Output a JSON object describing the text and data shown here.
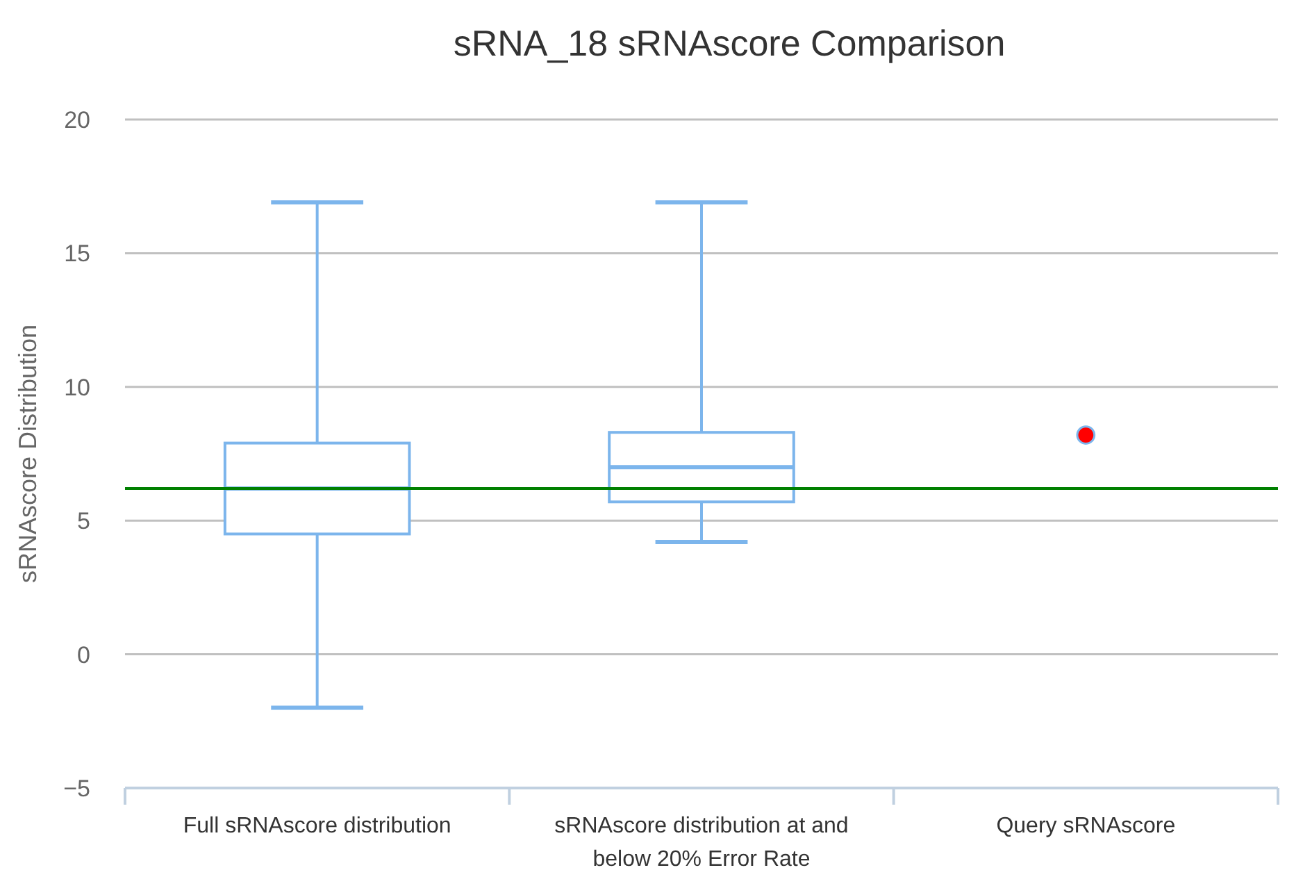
{
  "chart_data": {
    "type": "box",
    "title": "sRNA_18 sRNAscore Comparison",
    "ylabel": "sRNAscore Distribution",
    "categories": [
      "Full sRNAscore distribution",
      "sRNAscore distribution at and below 20% Error Rate",
      "Query sRNAscore"
    ],
    "series": [
      {
        "color": "#7cb5ec",
        "boxes": [
          {
            "low": -2.0,
            "q1": 4.5,
            "median": 6.2,
            "q3": 7.9,
            "high": 16.9
          },
          {
            "low": 4.2,
            "q1": 5.7,
            "median": 7.0,
            "q3": 8.3,
            "high": 16.9
          },
          null
        ]
      },
      {
        "type": "scatter",
        "color": "#ff0000",
        "x": [
          "Query sRNAscore"
        ],
        "values": [
          8.2
        ]
      }
    ],
    "ylim": [
      -5,
      20
    ],
    "yticks": [
      {
        "value": -5,
        "label": "−5"
      },
      0,
      5,
      10,
      15,
      20
    ],
    "grid": "y",
    "marker": "circle",
    "ref_lines": [
      {
        "axis": "y",
        "value": 6.2,
        "color": "#008000"
      }
    ]
  }
}
